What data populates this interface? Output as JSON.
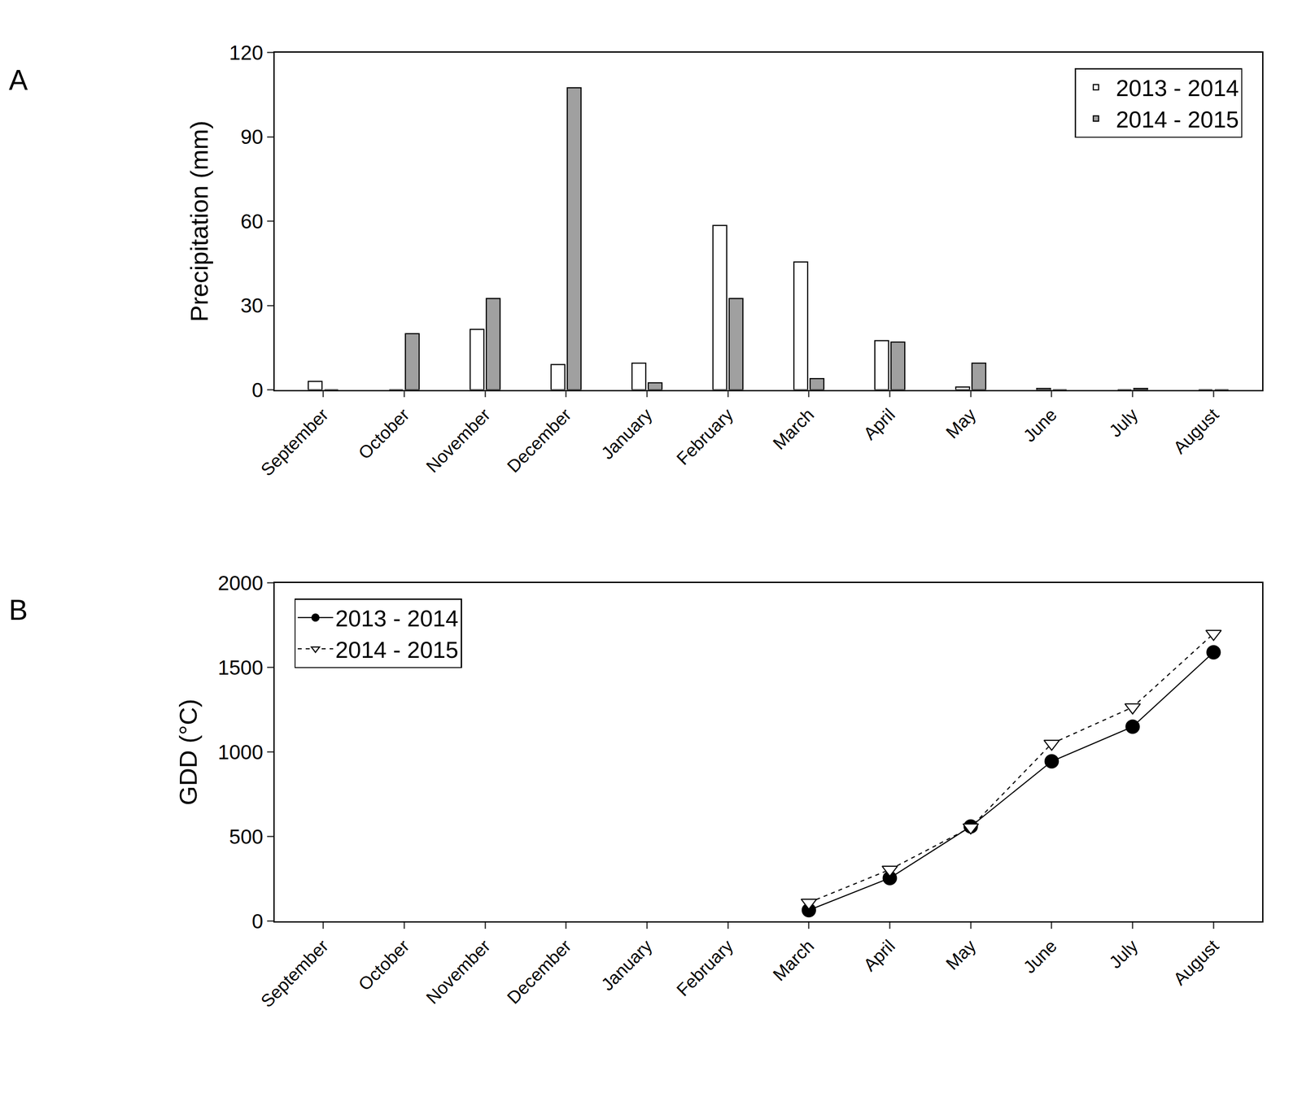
{
  "chart_data": [
    {
      "type": "bar",
      "title": "A",
      "y_label": "Precipitation (mm)",
      "categories": [
        "September",
        "October",
        "November",
        "December",
        "January",
        "February",
        "March",
        "April",
        "May",
        "June",
        "July",
        "August"
      ],
      "series": [
        {
          "name": "2013 - 2014",
          "color": "#ffffff",
          "values": [
            3,
            0,
            21.5,
            9,
            9.5,
            58.5,
            45.5,
            17.5,
            1,
            0.5,
            0,
            0
          ]
        },
        {
          "name": "2014 - 2015",
          "color": "#a0a0a0",
          "values": [
            0,
            20,
            32.5,
            107.5,
            2.5,
            32.5,
            4,
            17,
            9.5,
            0,
            0.5,
            0
          ]
        }
      ],
      "ylim": [
        0,
        120
      ],
      "yticks": [
        0,
        30,
        60,
        90,
        120
      ],
      "grid": false,
      "legend": "top right"
    },
    {
      "type": "line",
      "title": "B",
      "y_label": "GDD (°C)",
      "categories": [
        "September",
        "October",
        "November",
        "December",
        "January",
        "February",
        "March",
        "April",
        "May",
        "June",
        "July",
        "August"
      ],
      "series": [
        {
          "name": "2013 - 2014",
          "color": "#000000",
          "marker": "circle",
          "line_style": "solid",
          "values": [
            null,
            null,
            null,
            null,
            null,
            null,
            65,
            255,
            560,
            945,
            1150,
            1590
          ]
        },
        {
          "name": "2014 - 2015",
          "color": "#000000",
          "marker": "triangle-down-open",
          "line_style": "dash",
          "values": [
            null,
            null,
            null,
            null,
            null,
            null,
            110,
            305,
            555,
            1050,
            1265,
            1700
          ]
        }
      ],
      "ylim": [
        0,
        2000
      ],
      "yticks": [
        0,
        500,
        1000,
        1500,
        2000
      ],
      "grid": false,
      "legend": "top left"
    }
  ]
}
